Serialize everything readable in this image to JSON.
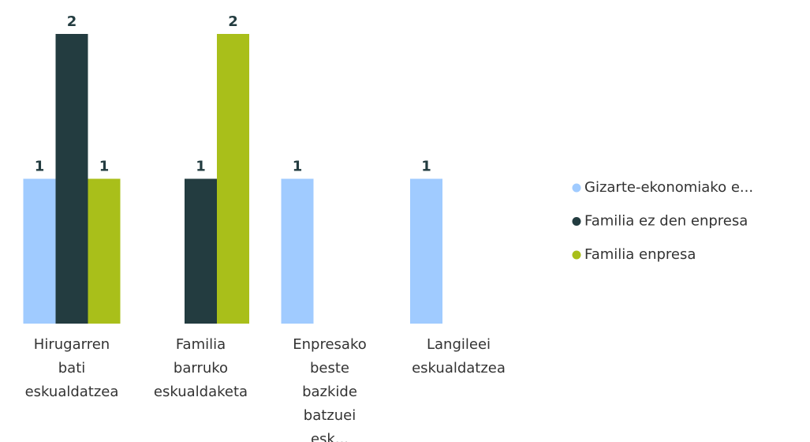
{
  "chart_data": {
    "type": "bar",
    "categories": [
      "Hirugarren bati eskualdatzea",
      "Familia barruko eskualdaketa",
      "Enpresako beste bazkide batzuei esk...",
      "Langileei eskualdatzea"
    ],
    "series": [
      {
        "name": "Gizarte-ekonomiako e...",
        "color": "#a0cbff",
        "values": [
          1,
          null,
          1,
          1
        ]
      },
      {
        "name": "Familia ez den enpresa",
        "color": "#233c40",
        "values": [
          2,
          1,
          null,
          null
        ]
      },
      {
        "name": "Familia enpresa",
        "color": "#a9bf1a",
        "values": [
          1,
          2,
          null,
          null
        ]
      }
    ],
    "ylim": [
      0,
      2
    ]
  }
}
